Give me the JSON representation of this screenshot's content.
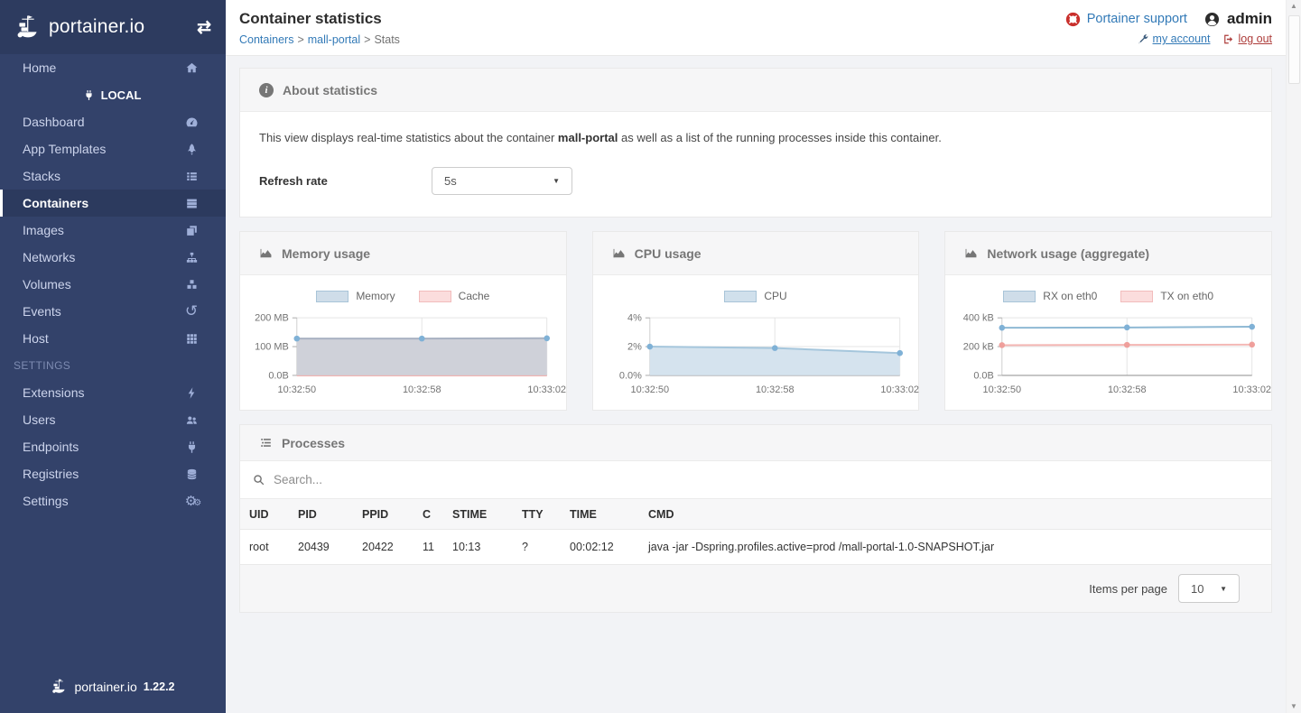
{
  "colors": {
    "sidebar_bg": "#33426a",
    "sidebar_header_bg": "#2d3b5f",
    "active_item_bg": "#2c3a5e",
    "link_blue": "#337ab7",
    "logout_red": "#ad3c3a",
    "support_ring_red": "#c9302c",
    "chart_blue_point": "#7fb1d6",
    "chart_pink_line": "#f4b6b3"
  },
  "sidebar": {
    "brand": "portainer.io",
    "items": [
      {
        "label": "Home",
        "icon": "home-icon"
      },
      {
        "label": "LOCAL",
        "icon": "plug-icon"
      },
      {
        "label": "Dashboard",
        "icon": "dashboard-icon"
      },
      {
        "label": "App Templates",
        "icon": "rocket-icon"
      },
      {
        "label": "Stacks",
        "icon": "list-icon"
      },
      {
        "label": "Containers",
        "icon": "server-icon"
      },
      {
        "label": "Images",
        "icon": "clone-icon"
      },
      {
        "label": "Networks",
        "icon": "sitemap-icon"
      },
      {
        "label": "Volumes",
        "icon": "cubes-icon"
      },
      {
        "label": "Events",
        "icon": "history-icon"
      },
      {
        "label": "Host",
        "icon": "grid-icon"
      },
      {
        "label": "SETTINGS",
        "icon": ""
      },
      {
        "label": "Extensions",
        "icon": "bolt-icon"
      },
      {
        "label": "Users",
        "icon": "users-icon"
      },
      {
        "label": "Endpoints",
        "icon": "plug-icon"
      },
      {
        "label": "Registries",
        "icon": "database-icon"
      },
      {
        "label": "Settings",
        "icon": "cogs-icon"
      }
    ],
    "footer_brand": "portainer.io",
    "footer_version": "1.22.2"
  },
  "header": {
    "title": "Container statistics",
    "breadcrumb": {
      "containers": "Containers",
      "sep": ">",
      "container_name": "mall-portal",
      "current": "Stats"
    },
    "support_label": "Portainer support",
    "username": "admin",
    "my_account_label": "my account",
    "logout_label": "log out"
  },
  "about": {
    "title": "About statistics",
    "description_prefix": "This view displays real-time statistics about the container ",
    "container_name": "mall-portal",
    "description_suffix": " as well as a list of the running processes inside this container.",
    "refresh_label": "Refresh rate",
    "refresh_value": "5s"
  },
  "chart_data": [
    {
      "type": "area",
      "title": "Memory usage",
      "x": [
        "10:32:50",
        "10:32:58",
        "10:33:02"
      ],
      "ymax": 200,
      "ytick_labels": [
        "200 MB",
        "100 MB",
        "0.0B"
      ],
      "ylim": [
        0,
        200
      ],
      "yunit": "MB",
      "series": [
        {
          "name": "Memory",
          "values": [
            128,
            128,
            129
          ],
          "line": "#a9b2c2",
          "fill": "#cfd1d9",
          "point": "#7fb1d6",
          "legend_fill": "#cfdde9",
          "legend_border": "#a8c4d8"
        },
        {
          "name": "Cache",
          "values": [
            0,
            0,
            0
          ],
          "line": "#f0a8a6",
          "fill": null,
          "point": null,
          "legend_fill": "#fbdddd",
          "legend_border": "#f2bcbc"
        }
      ]
    },
    {
      "type": "area",
      "title": "CPU usage",
      "x": [
        "10:32:50",
        "10:32:58",
        "10:33:02"
      ],
      "ymax": 4,
      "ytick_labels": [
        "4%",
        "2%",
        "0.0%"
      ],
      "ylim": [
        0,
        4
      ],
      "yunit": "%",
      "series": [
        {
          "name": "CPU",
          "values": [
            2.0,
            1.9,
            1.55
          ],
          "line": "#a5c6dc",
          "fill": "#d5e3ee",
          "point": "#7fb1d6",
          "legend_fill": "#d0e0ec",
          "legend_border": "#a8c4d8"
        }
      ]
    },
    {
      "type": "line",
      "title": "Network usage (aggregate)",
      "x": [
        "10:32:50",
        "10:32:58",
        "10:33:02"
      ],
      "ymax": 400,
      "ytick_labels": [
        "400 kB",
        "200 kB",
        "0.0B"
      ],
      "ylim": [
        0,
        400
      ],
      "yunit": "kB",
      "series": [
        {
          "name": "RX on eth0",
          "values": [
            331,
            333,
            338
          ],
          "line": "#8fb9d4",
          "fill": null,
          "point": "#7fb1d6",
          "legend_fill": "#cfdde9",
          "legend_border": "#a8c4d8"
        },
        {
          "name": "TX on eth0",
          "values": [
            210,
            212,
            214
          ],
          "line": "#f4b6b3",
          "fill": null,
          "point": "#ef9f9b",
          "legend_fill": "#fbdddd",
          "legend_border": "#f2bcbc"
        }
      ]
    }
  ],
  "processes": {
    "title": "Processes",
    "search_placeholder": "Search...",
    "columns": [
      "UID",
      "PID",
      "PPID",
      "C",
      "STIME",
      "TTY",
      "TIME",
      "CMD"
    ],
    "rows": [
      [
        "root",
        "20439",
        "20422",
        "11",
        "10:13",
        "?",
        "00:02:12",
        "java -jar -Dspring.profiles.active=prod /mall-portal-1.0-SNAPSHOT.jar"
      ]
    ],
    "items_per_page_label": "Items per page",
    "items_per_page_value": "10"
  }
}
